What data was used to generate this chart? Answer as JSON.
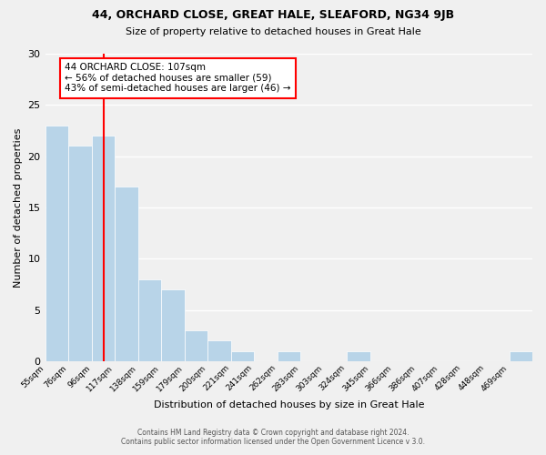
{
  "title": "44, ORCHARD CLOSE, GREAT HALE, SLEAFORD, NG34 9JB",
  "subtitle": "Size of property relative to detached houses in Great Hale",
  "xlabel": "Distribution of detached houses by size in Great Hale",
  "ylabel": "Number of detached properties",
  "footer_lines": [
    "Contains HM Land Registry data © Crown copyright and database right 2024.",
    "Contains public sector information licensed under the Open Government Licence v 3.0."
  ],
  "bin_labels": [
    "55sqm",
    "76sqm",
    "96sqm",
    "117sqm",
    "138sqm",
    "159sqm",
    "179sqm",
    "200sqm",
    "221sqm",
    "241sqm",
    "262sqm",
    "283sqm",
    "303sqm",
    "324sqm",
    "345sqm",
    "366sqm",
    "386sqm",
    "407sqm",
    "428sqm",
    "448sqm",
    "469sqm"
  ],
  "bar_values": [
    23,
    21,
    22,
    17,
    8,
    7,
    3,
    2,
    1,
    0,
    1,
    0,
    0,
    1,
    0,
    0,
    0,
    0,
    0,
    0,
    1
  ],
  "bar_color": "#b8d4e8",
  "bar_edge_color": "#b8d4e8",
  "annotation_title": "44 ORCHARD CLOSE: 107sqm",
  "annotation_line1": "← 56% of detached houses are smaller (59)",
  "annotation_line2": "43% of semi-detached houses are larger (46) →",
  "annotation_box_color": "white",
  "annotation_box_edge_color": "red",
  "vline_color": "red",
  "vline_x": 2.524,
  "ylim": [
    0,
    30
  ],
  "yticks": [
    0,
    5,
    10,
    15,
    20,
    25,
    30
  ],
  "background_color": "#f0f0f0",
  "grid_color": "white",
  "figwidth": 6.0,
  "figheight": 5.0,
  "dpi": 100
}
